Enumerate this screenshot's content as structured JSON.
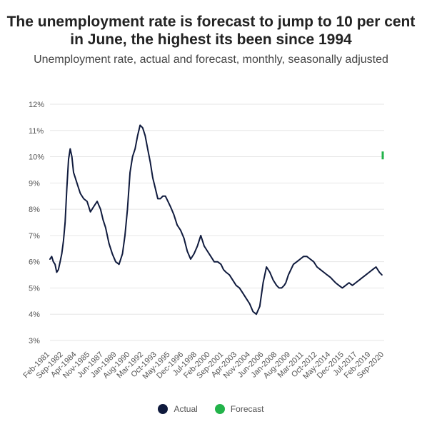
{
  "title": "The unemployment rate is forecast to jump to 10 per cent in June, the highest its been since 1994",
  "subtitle": "Unemployment rate, actual and forecast, monthly, seasonally adjusted",
  "colors": {
    "actual": "#0f1a3d",
    "forecast": "#22b34a",
    "grid": "#e6e6e6"
  },
  "chart_data": {
    "type": "line",
    "ylim": [
      3,
      12
    ],
    "xlim": [
      1981.0,
      2020.67
    ],
    "y_ticks": [
      "3%",
      "4%",
      "5%",
      "6%",
      "7%",
      "8%",
      "9%",
      "10%",
      "11%",
      "12%"
    ],
    "x_ticks": [
      "Feb-1981",
      "Sep-1982",
      "Apr-1984",
      "Nov-1985",
      "Jun-1987",
      "Jan-1989",
      "Aug-1990",
      "Mar-1992",
      "Oct-1993",
      "May-1995",
      "Dec-1996",
      "Jul-1998",
      "Feb-2000",
      "Sep-2001",
      "Apr-2003",
      "Nov-2004",
      "Jun-2006",
      "Jan-2008",
      "Aug-2009",
      "Mar-2011",
      "Oct-2012",
      "May-2014",
      "Dec-2015",
      "Jul-2017",
      "Feb-2019",
      "Sep-2020"
    ],
    "grid": true,
    "legend_position": "bottom",
    "series": [
      {
        "name": "Actual",
        "x": [
          1981.0,
          1981.2,
          1981.4,
          1981.6,
          1981.8,
          1982.0,
          1982.2,
          1982.4,
          1982.6,
          1982.8,
          1983.0,
          1983.2,
          1983.4,
          1983.6,
          1983.8,
          1984.0,
          1984.3,
          1984.6,
          1985.0,
          1985.4,
          1985.8,
          1986.2,
          1986.6,
          1987.0,
          1987.3,
          1987.6,
          1988.0,
          1988.4,
          1988.8,
          1989.2,
          1989.6,
          1989.9,
          1990.2,
          1990.5,
          1990.8,
          1991.1,
          1991.4,
          1991.7,
          1992.0,
          1992.3,
          1992.6,
          1992.9,
          1993.2,
          1993.5,
          1993.8,
          1994.1,
          1994.4,
          1994.7,
          1995.0,
          1995.3,
          1995.7,
          1996.1,
          1996.5,
          1996.9,
          1997.3,
          1997.7,
          1998.1,
          1998.5,
          1998.9,
          1999.3,
          1999.7,
          2000.1,
          2000.5,
          2000.9,
          2001.3,
          2001.6,
          2001.9,
          2002.3,
          2002.7,
          2003.1,
          2003.5,
          2003.9,
          2004.3,
          2004.7,
          2005.1,
          2005.5,
          2005.9,
          2006.3,
          2006.7,
          2007.1,
          2007.5,
          2007.9,
          2008.2,
          2008.5,
          2008.8,
          2009.0,
          2009.3,
          2009.6,
          2009.9,
          2010.3,
          2010.7,
          2011.1,
          2011.5,
          2011.9,
          2012.3,
          2012.7,
          2013.1,
          2013.5,
          2013.9,
          2014.3,
          2014.6,
          2014.9,
          2015.3,
          2015.7,
          2016.1,
          2016.5,
          2016.9,
          2017.3,
          2017.7,
          2018.1,
          2018.5,
          2018.9,
          2019.3,
          2019.7,
          2020.1,
          2020.4
        ],
        "values": [
          6.1,
          6.2,
          6.0,
          5.9,
          5.6,
          5.7,
          6.0,
          6.3,
          6.8,
          7.5,
          8.8,
          9.9,
          10.3,
          10.0,
          9.4,
          9.2,
          8.9,
          8.6,
          8.4,
          8.3,
          7.9,
          8.1,
          8.3,
          8.0,
          7.6,
          7.3,
          6.7,
          6.3,
          6.0,
          5.9,
          6.3,
          7.0,
          8.0,
          9.4,
          10.0,
          10.3,
          10.8,
          11.2,
          11.1,
          10.8,
          10.3,
          9.8,
          9.2,
          8.8,
          8.4,
          8.4,
          8.5,
          8.5,
          8.3,
          8.1,
          7.8,
          7.4,
          7.2,
          6.9,
          6.4,
          6.1,
          6.3,
          6.6,
          7.0,
          6.6,
          6.4,
          6.2,
          6.0,
          6.0,
          5.9,
          5.7,
          5.6,
          5.5,
          5.3,
          5.1,
          5.0,
          4.8,
          4.6,
          4.4,
          4.1,
          4.0,
          4.3,
          5.2,
          5.8,
          5.6,
          5.3,
          5.1,
          5.0,
          5.0,
          5.1,
          5.2,
          5.5,
          5.7,
          5.9,
          6.0,
          6.1,
          6.2,
          6.2,
          6.1,
          6.0,
          5.8,
          5.7,
          5.6,
          5.5,
          5.4,
          5.3,
          5.2,
          5.1,
          5.0,
          5.1,
          5.2,
          5.1,
          5.2,
          5.3,
          5.4,
          5.5,
          5.6,
          5.7,
          5.8,
          5.6,
          5.5
        ]
      },
      {
        "name": "Forecast",
        "x": [
          2020.45,
          2020.45
        ],
        "values": [
          9.9,
          10.2
        ]
      }
    ]
  }
}
